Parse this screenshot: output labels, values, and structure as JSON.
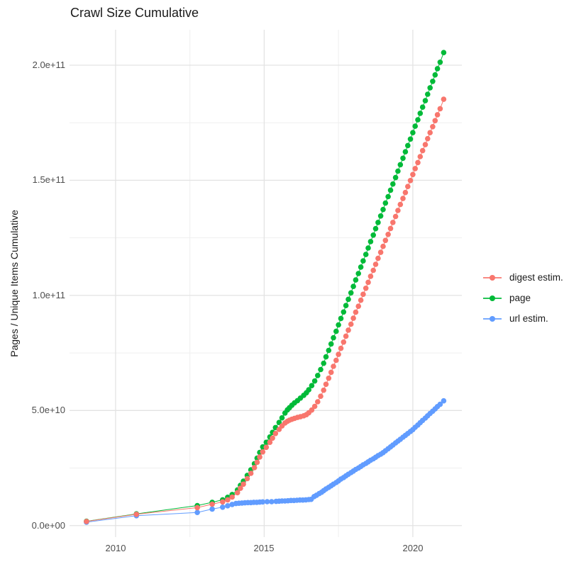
{
  "title": "Crawl Size Cumulative",
  "axes": {
    "y_title": "Pages / Unique Items Cumulative",
    "y_ticks": [
      "2.0e+11",
      "1.5e+11",
      "1.0e+11",
      "5.0e+10",
      "0.0e+00"
    ],
    "x_ticks": [
      "2010",
      "2015",
      "2020"
    ]
  },
  "legend": {
    "items": [
      {
        "label": "digest estim.",
        "color": "#F8766D"
      },
      {
        "label": "page",
        "color": "#00BA38"
      },
      {
        "label": "url estim.",
        "color": "#619CFF"
      }
    ]
  },
  "style_colors": {
    "background": "#ffffff",
    "grid_major": "#e3e3e3",
    "grid_minor": "#efefef",
    "tick_text": "#4d4d4d",
    "title_text": "#1a1a1a"
  },
  "chart_data": {
    "type": "scatter",
    "title": "Crawl Size Cumulative",
    "xlabel": "",
    "ylabel": "Pages / Unique Items Cumulative",
    "legend_position": "right",
    "grid": true,
    "values_unit": "1e9 (billions); y axis shown in scientific notation",
    "xlim": [
      2008.45,
      2021.65
    ],
    "ylim_e9": [
      -5,
      215.4
    ],
    "x_major_gridlines": [
      2010,
      2015,
      2020
    ],
    "x_minor_gridlines": [
      2012.5,
      2017.5
    ],
    "y_major_gridlines_e9": [
      0,
      50,
      100,
      150,
      200
    ],
    "y_minor_gridlines_e9": [
      25,
      75,
      125,
      175
    ],
    "x_tick_labels": [
      "2010",
      "2015",
      "2020"
    ],
    "y_tick_labels": [
      "0.0e+00",
      "5.0e+10",
      "1.0e+11",
      "1.5e+11",
      "2.0e+11"
    ],
    "series": [
      {
        "name": "page",
        "color": "#00BA38",
        "points": [
          [
            2009.02,
            1.9
          ],
          [
            2010.7,
            5.1
          ],
          [
            2012.75,
            8.7
          ],
          [
            2013.25,
            10.1
          ],
          [
            2013.6,
            11.2
          ],
          [
            2013.77,
            12.3
          ],
          [
            2013.92,
            13.5
          ],
          [
            2014.1,
            15.5
          ],
          [
            2014.2,
            17.5
          ],
          [
            2014.3,
            19.3
          ],
          [
            2014.43,
            21.8
          ],
          [
            2014.55,
            24.2
          ],
          [
            2014.67,
            26.9
          ],
          [
            2014.76,
            29.3
          ],
          [
            2014.85,
            31.8
          ],
          [
            2014.95,
            34.2
          ],
          [
            2015.07,
            36.2
          ],
          [
            2015.19,
            38.5
          ],
          [
            2015.28,
            40.5
          ],
          [
            2015.38,
            42.6
          ],
          [
            2015.5,
            44.8
          ],
          [
            2015.6,
            46.8
          ],
          [
            2015.7,
            48.9
          ],
          [
            2015.78,
            50.3
          ],
          [
            2015.85,
            51.2
          ],
          [
            2015.93,
            52.3
          ],
          [
            2016.02,
            53.3
          ],
          [
            2016.12,
            54.3
          ],
          [
            2016.22,
            55.4
          ],
          [
            2016.33,
            56.6
          ],
          [
            2016.42,
            57.7
          ],
          [
            2016.5,
            59.0
          ],
          [
            2016.6,
            60.8
          ],
          [
            2016.7,
            62.8
          ],
          [
            2016.8,
            65.2
          ],
          [
            2016.9,
            67.8
          ],
          [
            2017.0,
            70.5
          ],
          [
            2017.08,
            73.3
          ],
          [
            2017.17,
            76.1
          ],
          [
            2017.25,
            78.9
          ],
          [
            2017.33,
            81.6
          ],
          [
            2017.42,
            84.4
          ],
          [
            2017.5,
            87.2
          ],
          [
            2017.58,
            90.0
          ],
          [
            2017.67,
            92.8
          ],
          [
            2017.75,
            95.6
          ],
          [
            2017.83,
            98.3
          ],
          [
            2017.92,
            101.1
          ],
          [
            2018.0,
            103.9
          ],
          [
            2018.08,
            106.7
          ],
          [
            2018.17,
            109.5
          ],
          [
            2018.25,
            112.3
          ],
          [
            2018.33,
            115.0
          ],
          [
            2018.42,
            117.8
          ],
          [
            2018.5,
            120.6
          ],
          [
            2018.58,
            123.4
          ],
          [
            2018.67,
            126.2
          ],
          [
            2018.75,
            129.0
          ],
          [
            2018.83,
            131.7
          ],
          [
            2018.92,
            134.5
          ],
          [
            2019.0,
            137.3
          ],
          [
            2019.08,
            140.1
          ],
          [
            2019.17,
            142.9
          ],
          [
            2019.25,
            145.7
          ],
          [
            2019.33,
            148.4
          ],
          [
            2019.42,
            151.2
          ],
          [
            2019.5,
            154.0
          ],
          [
            2019.58,
            156.8
          ],
          [
            2019.67,
            159.6
          ],
          [
            2019.75,
            162.4
          ],
          [
            2019.83,
            165.1
          ],
          [
            2019.92,
            167.9
          ],
          [
            2020.0,
            170.7
          ],
          [
            2020.08,
            173.5
          ],
          [
            2020.17,
            176.3
          ],
          [
            2020.25,
            179.1
          ],
          [
            2020.33,
            181.8
          ],
          [
            2020.42,
            184.6
          ],
          [
            2020.5,
            187.4
          ],
          [
            2020.58,
            190.2
          ],
          [
            2020.67,
            193.0
          ],
          [
            2020.75,
            195.8
          ],
          [
            2020.83,
            198.5
          ],
          [
            2020.92,
            201.3
          ],
          [
            2021.04,
            205.5
          ]
        ]
      },
      {
        "name": "url estim.",
        "color": "#619CFF",
        "points": [
          [
            2009.02,
            1.5
          ],
          [
            2010.7,
            4.3
          ],
          [
            2012.75,
            5.7
          ],
          [
            2013.25,
            7.2
          ],
          [
            2013.6,
            8.0
          ],
          [
            2013.77,
            8.6
          ],
          [
            2013.92,
            9.2
          ],
          [
            2014.05,
            9.6
          ],
          [
            2014.15,
            9.7
          ],
          [
            2014.25,
            9.8
          ],
          [
            2014.35,
            9.9
          ],
          [
            2014.45,
            10.0
          ],
          [
            2014.55,
            10.0
          ],
          [
            2014.65,
            10.1
          ],
          [
            2014.75,
            10.1
          ],
          [
            2014.85,
            10.2
          ],
          [
            2014.95,
            10.3
          ],
          [
            2015.1,
            10.4
          ],
          [
            2015.25,
            10.4
          ],
          [
            2015.4,
            10.5
          ],
          [
            2015.5,
            10.6
          ],
          [
            2015.6,
            10.7
          ],
          [
            2015.7,
            10.7
          ],
          [
            2015.8,
            10.8
          ],
          [
            2015.9,
            10.9
          ],
          [
            2016.0,
            10.9
          ],
          [
            2016.1,
            11.0
          ],
          [
            2016.2,
            11.1
          ],
          [
            2016.3,
            11.1
          ],
          [
            2016.4,
            11.2
          ],
          [
            2016.5,
            11.3
          ],
          [
            2016.58,
            11.4
          ],
          [
            2016.68,
            12.6
          ],
          [
            2016.76,
            13.2
          ],
          [
            2016.85,
            13.9
          ],
          [
            2016.93,
            14.5
          ],
          [
            2017.0,
            15.2
          ],
          [
            2017.08,
            15.9
          ],
          [
            2017.17,
            16.6
          ],
          [
            2017.25,
            17.3
          ],
          [
            2017.33,
            18.0
          ],
          [
            2017.42,
            18.7
          ],
          [
            2017.5,
            19.4
          ],
          [
            2017.58,
            20.2
          ],
          [
            2017.67,
            20.9
          ],
          [
            2017.75,
            21.6
          ],
          [
            2017.83,
            22.3
          ],
          [
            2017.92,
            23.0
          ],
          [
            2018.0,
            23.7
          ],
          [
            2018.08,
            24.4
          ],
          [
            2018.17,
            25.0
          ],
          [
            2018.25,
            25.7
          ],
          [
            2018.33,
            26.4
          ],
          [
            2018.42,
            27.0
          ],
          [
            2018.5,
            27.7
          ],
          [
            2018.58,
            28.4
          ],
          [
            2018.67,
            29.0
          ],
          [
            2018.75,
            29.7
          ],
          [
            2018.83,
            30.4
          ],
          [
            2018.92,
            31.0
          ],
          [
            2019.0,
            31.7
          ],
          [
            2019.08,
            32.5
          ],
          [
            2019.17,
            33.4
          ],
          [
            2019.25,
            34.2
          ],
          [
            2019.33,
            35.0
          ],
          [
            2019.42,
            35.9
          ],
          [
            2019.5,
            36.7
          ],
          [
            2019.58,
            37.5
          ],
          [
            2019.67,
            38.4
          ],
          [
            2019.75,
            39.2
          ],
          [
            2019.83,
            40.0
          ],
          [
            2019.92,
            40.9
          ],
          [
            2020.0,
            41.7
          ],
          [
            2020.08,
            42.7
          ],
          [
            2020.17,
            43.7
          ],
          [
            2020.25,
            44.7
          ],
          [
            2020.33,
            45.7
          ],
          [
            2020.42,
            46.7
          ],
          [
            2020.5,
            47.7
          ],
          [
            2020.58,
            48.7
          ],
          [
            2020.67,
            49.7
          ],
          [
            2020.75,
            50.7
          ],
          [
            2020.83,
            51.7
          ],
          [
            2020.92,
            52.7
          ],
          [
            2021.04,
            54.2
          ]
        ]
      },
      {
        "name": "digest estim.",
        "color": "#F8766D",
        "points": [
          [
            2009.02,
            1.8
          ],
          [
            2010.7,
            4.9
          ],
          [
            2012.75,
            7.8
          ],
          [
            2013.25,
            9.3
          ],
          [
            2013.6,
            10.3
          ],
          [
            2013.77,
            11.2
          ],
          [
            2013.92,
            12.4
          ],
          [
            2014.1,
            14.3
          ],
          [
            2014.2,
            16.2
          ],
          [
            2014.3,
            18.0
          ],
          [
            2014.43,
            20.4
          ],
          [
            2014.55,
            22.7
          ],
          [
            2014.67,
            25.2
          ],
          [
            2014.76,
            27.5
          ],
          [
            2014.85,
            29.8
          ],
          [
            2014.95,
            32.0
          ],
          [
            2015.07,
            34.0
          ],
          [
            2015.19,
            36.2
          ],
          [
            2015.28,
            38.0
          ],
          [
            2015.38,
            40.0
          ],
          [
            2015.5,
            41.8
          ],
          [
            2015.6,
            43.3
          ],
          [
            2015.7,
            44.6
          ],
          [
            2015.78,
            45.3
          ],
          [
            2015.85,
            45.8
          ],
          [
            2015.93,
            46.2
          ],
          [
            2016.02,
            46.6
          ],
          [
            2016.12,
            47.0
          ],
          [
            2016.22,
            47.3
          ],
          [
            2016.33,
            47.7
          ],
          [
            2016.42,
            48.2
          ],
          [
            2016.5,
            49.0
          ],
          [
            2016.6,
            50.2
          ],
          [
            2016.7,
            51.8
          ],
          [
            2016.8,
            53.8
          ],
          [
            2016.9,
            56.2
          ],
          [
            2017.0,
            58.8
          ],
          [
            2017.08,
            61.4
          ],
          [
            2017.17,
            64.0
          ],
          [
            2017.25,
            66.6
          ],
          [
            2017.33,
            69.2
          ],
          [
            2017.42,
            71.8
          ],
          [
            2017.5,
            74.4
          ],
          [
            2017.58,
            77.0
          ],
          [
            2017.67,
            79.7
          ],
          [
            2017.75,
            82.3
          ],
          [
            2017.83,
            84.9
          ],
          [
            2017.92,
            87.5
          ],
          [
            2018.0,
            90.1
          ],
          [
            2018.08,
            92.7
          ],
          [
            2018.17,
            95.3
          ],
          [
            2018.25,
            97.9
          ],
          [
            2018.33,
            100.5
          ],
          [
            2018.42,
            103.1
          ],
          [
            2018.5,
            105.7
          ],
          [
            2018.58,
            108.3
          ],
          [
            2018.67,
            110.9
          ],
          [
            2018.75,
            113.5
          ],
          [
            2018.83,
            116.1
          ],
          [
            2018.92,
            118.7
          ],
          [
            2019.0,
            121.3
          ],
          [
            2019.08,
            123.9
          ],
          [
            2019.17,
            126.5
          ],
          [
            2019.25,
            129.1
          ],
          [
            2019.33,
            131.7
          ],
          [
            2019.42,
            134.3
          ],
          [
            2019.5,
            136.9
          ],
          [
            2019.58,
            139.5
          ],
          [
            2019.67,
            142.1
          ],
          [
            2019.75,
            144.7
          ],
          [
            2019.83,
            147.3
          ],
          [
            2019.92,
            149.9
          ],
          [
            2020.0,
            152.5
          ],
          [
            2020.08,
            155.1
          ],
          [
            2020.17,
            157.7
          ],
          [
            2020.25,
            160.3
          ],
          [
            2020.33,
            162.9
          ],
          [
            2020.42,
            165.5
          ],
          [
            2020.5,
            168.1
          ],
          [
            2020.58,
            170.7
          ],
          [
            2020.67,
            173.3
          ],
          [
            2020.75,
            175.9
          ],
          [
            2020.83,
            178.5
          ],
          [
            2020.92,
            181.1
          ],
          [
            2021.04,
            185.2
          ]
        ]
      }
    ]
  }
}
